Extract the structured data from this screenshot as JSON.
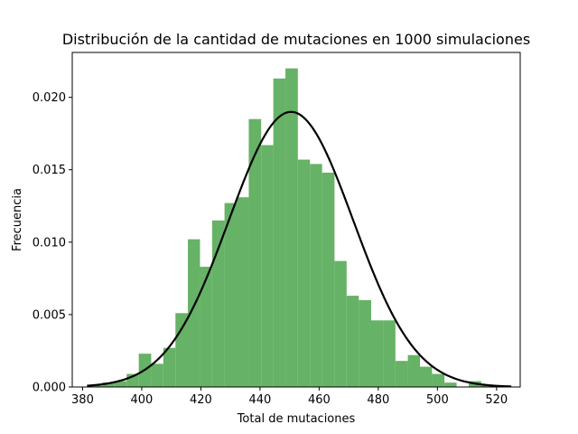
{
  "chart_data": {
    "type": "bar",
    "title": "Distribución de la cantidad de mutaciones en 1000 simulaciones",
    "xlabel": "Total de mutaciones",
    "ylabel": "Frecuencia",
    "xlim": [
      376.5,
      528.0
    ],
    "ylim": [
      0,
      0.0231
    ],
    "xticks": [
      380,
      400,
      420,
      440,
      460,
      480,
      500,
      520
    ],
    "xtick_labels": [
      "380",
      "400",
      "420",
      "440",
      "460",
      "480",
      "500",
      "520"
    ],
    "yticks": [
      0.0,
      0.005,
      0.01,
      0.015,
      0.02
    ],
    "ytick_labels": [
      "0.000",
      "0.005",
      "0.010",
      "0.015",
      "0.020"
    ],
    "bar_color": "#66b266",
    "curve_color": "#000000",
    "grid": false,
    "histogram": {
      "bin_edges": [
        382.5,
        386.6,
        390.8,
        394.9,
        399.0,
        403.2,
        407.3,
        411.4,
        415.6,
        419.7,
        423.8,
        428.0,
        432.1,
        436.2,
        440.4,
        444.5,
        448.6,
        452.8,
        456.9,
        461.0,
        465.2,
        469.3,
        473.4,
        477.6,
        481.7,
        485.8,
        490.0,
        494.1,
        498.2,
        502.4,
        506.5,
        510.6,
        514.8,
        518.9,
        523.0
      ],
      "densities": [
        0.0001,
        0.0003,
        0.0004,
        0.0009,
        0.0023,
        0.0016,
        0.0027,
        0.0051,
        0.0102,
        0.0083,
        0.0115,
        0.0127,
        0.0131,
        0.0185,
        0.0167,
        0.0213,
        0.022,
        0.0157,
        0.0154,
        0.0148,
        0.0087,
        0.0063,
        0.006,
        0.0046,
        0.0046,
        0.0018,
        0.0022,
        0.0014,
        0.0009,
        0.0003,
        0.0,
        0.0004,
        0.0001,
        0.0
      ]
    },
    "series": [
      {
        "type": "line",
        "x_start": 381.5,
        "x_end": 525.0,
        "mean": 450.5,
        "std": 21.0
      }
    ]
  }
}
